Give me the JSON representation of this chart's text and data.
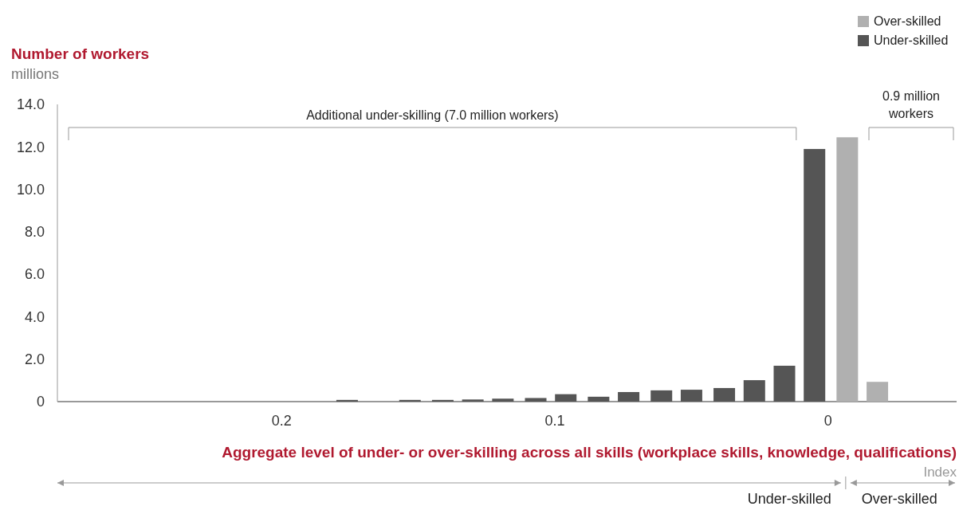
{
  "chart_data": {
    "type": "bar",
    "ylabel": "Number of workers",
    "xlabel": "Aggregate level of under- or over-skilling across all skills (workplace skills, knowledge, qualifications)",
    "annotations": [
      "millions",
      "Index",
      "Additional under-skilling (7.0 million workers)",
      "0.9 million workers",
      "Under-skilled",
      "Over-skilled"
    ],
    "xlim": [
      0.282,
      -0.047
    ],
    "xticks": [
      0.2,
      0.1,
      0
    ],
    "ylim": [
      0,
      14
    ],
    "yticks": [
      {
        "value": 0,
        "label": "0"
      },
      {
        "value": 2,
        "label": "2.0"
      },
      {
        "value": 4,
        "label": "4.0"
      },
      {
        "value": 6,
        "label": "6.0"
      },
      {
        "value": 8,
        "label": "8.0"
      },
      {
        "value": 10,
        "label": "10.0"
      },
      {
        "value": 12,
        "label": "12.0"
      },
      {
        "value": 14,
        "label": "14.0"
      }
    ],
    "legend": "top right",
    "series": [
      {
        "name": "Over-skilled",
        "color": "#b0b0b0",
        "x": [
          -0.007,
          -0.018
        ],
        "values": [
          12.45,
          0.93
        ]
      },
      {
        "name": "Under-skilled",
        "color": "#555555",
        "x": [
          0.176,
          0.153,
          0.141,
          0.13,
          0.119,
          0.107,
          0.096,
          0.084,
          0.073,
          0.061,
          0.05,
          0.038,
          0.027,
          0.016,
          0.005
        ],
        "values": [
          0.08,
          0.08,
          0.08,
          0.1,
          0.14,
          0.17,
          0.35,
          0.23,
          0.45,
          0.53,
          0.56,
          0.64,
          1.01,
          1.69,
          11.9
        ]
      }
    ]
  }
}
